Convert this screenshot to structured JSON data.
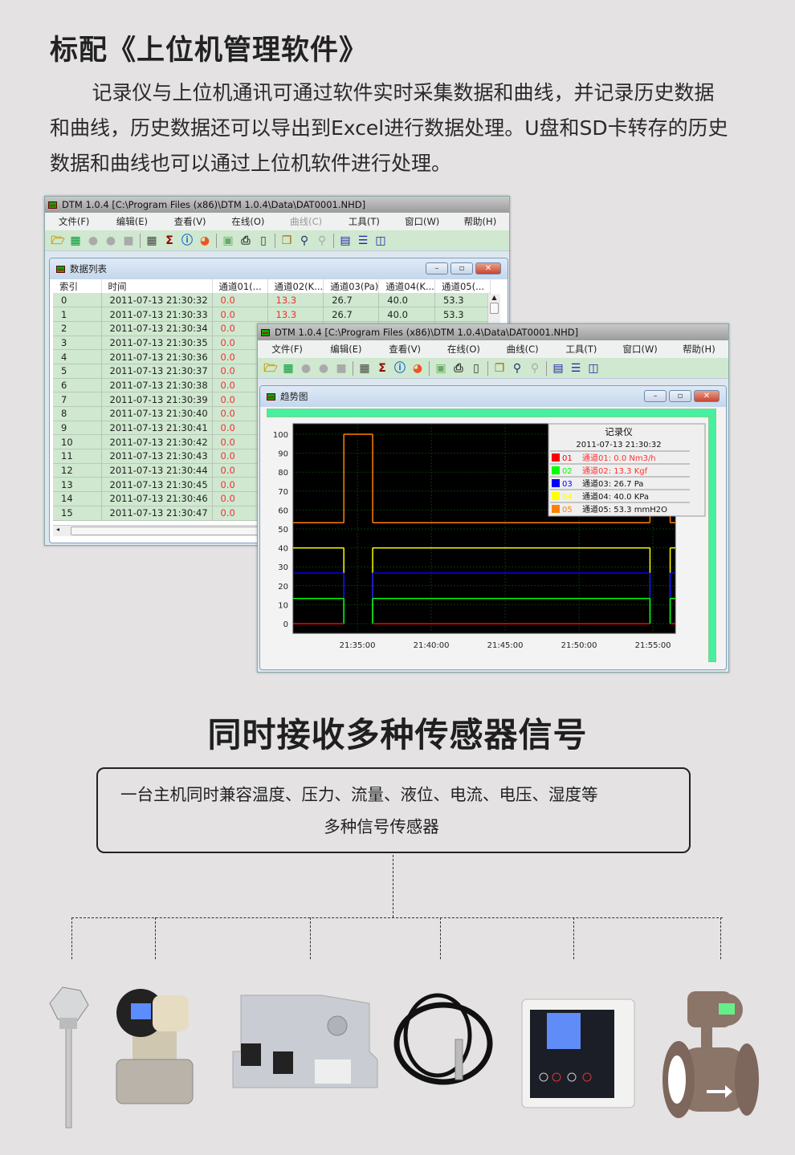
{
  "heading1": "标配《上位机管理软件》",
  "intro": "记录仪与上位机通讯可通过软件实时采集数据和曲线，并记录历史数据和曲线，历史数据还可以导出到Excel进行数据处理。U盘和SD卡转存的历史数据和曲线也可以通过上位机软件进行处理。",
  "app": {
    "title": "DTM 1.0.4 [C:\\Program Files (x86)\\DTM 1.0.4\\Data\\DAT0001.NHD]",
    "menu": [
      "文件(F)",
      "编辑(E)",
      "查看(V)",
      "在线(O)",
      "曲线(C)",
      "工具(T)",
      "窗口(W)",
      "帮助(H)"
    ],
    "toolbar_icons": [
      "open-folder-icon",
      "trend-icon",
      "record-icon",
      "stop-circle-icon",
      "stop-square-icon",
      "grid-icon",
      "sigma-icon",
      "info-icon",
      "pie-icon",
      "export-icon",
      "print-icon",
      "print-preview-icon",
      "copy-icon",
      "zoom-in-icon",
      "zoom-out-icon",
      "cascade-icon",
      "tile-horizontal-icon",
      "tile-vertical-icon"
    ],
    "window_buttons": {
      "minimize": "–",
      "restore": "▫",
      "close": "✕"
    }
  },
  "data_list": {
    "title": "数据列表",
    "columns": [
      "索引",
      "时间",
      "通道01(...",
      "通道02(K...",
      "通道03(Pa)",
      "通道04(K...",
      "通道05(..."
    ],
    "rows": [
      [
        "0",
        "2011-07-13 21:30:32",
        "0.0",
        "13.3",
        "26.7",
        "40.0",
        "53.3"
      ],
      [
        "1",
        "2011-07-13 21:30:33",
        "0.0",
        "13.3",
        "26.7",
        "40.0",
        "53.3"
      ],
      [
        "2",
        "2011-07-13 21:30:34",
        "0.0"
      ],
      [
        "3",
        "2011-07-13 21:30:35",
        "0.0"
      ],
      [
        "4",
        "2011-07-13 21:30:36",
        "0.0"
      ],
      [
        "5",
        "2011-07-13 21:30:37",
        "0.0"
      ],
      [
        "6",
        "2011-07-13 21:30:38",
        "0.0"
      ],
      [
        "7",
        "2011-07-13 21:30:39",
        "0.0"
      ],
      [
        "8",
        "2011-07-13 21:30:40",
        "0.0"
      ],
      [
        "9",
        "2011-07-13 21:30:41",
        "0.0"
      ],
      [
        "10",
        "2011-07-13 21:30:42",
        "0.0"
      ],
      [
        "11",
        "2011-07-13 21:30:43",
        "0.0"
      ],
      [
        "12",
        "2011-07-13 21:30:44",
        "0.0"
      ],
      [
        "13",
        "2011-07-13 21:30:45",
        "0.0"
      ],
      [
        "14",
        "2011-07-13 21:30:46",
        "0.0"
      ],
      [
        "15",
        "2011-07-13 21:30:47",
        "0.0"
      ]
    ]
  },
  "trend": {
    "title": "趋势图"
  },
  "chart_data": {
    "type": "line",
    "step": true,
    "xlim": [
      "21:30:39",
      "21:56:31"
    ],
    "ylim": [
      0,
      100
    ],
    "yticks": [
      0,
      10,
      20,
      30,
      40,
      50,
      60,
      70,
      80,
      90,
      100
    ],
    "xticks": [
      "21:35:00",
      "21:40:00",
      "21:45:00",
      "21:50:00",
      "21:55:00"
    ],
    "grid": true,
    "background": "#000000",
    "series": [
      {
        "code": "05",
        "name": "通道05: 53.3 mmH2O",
        "color": "#ff8000",
        "points": [
          [
            "21:30:39",
            53.3
          ],
          [
            "21:34:05",
            100
          ],
          [
            "21:36:02",
            53.3
          ],
          [
            "21:54:48",
            100
          ],
          [
            "21:56:10",
            53.3
          ]
        ]
      },
      {
        "code": "04",
        "name": "通道04: 40.0 KPa",
        "color": "#ffff00",
        "points": [
          [
            "21:30:39",
            40
          ],
          [
            "21:34:05",
            null
          ],
          [
            "21:36:02",
            40
          ],
          [
            "21:54:48",
            null
          ],
          [
            "21:56:10",
            40
          ]
        ]
      },
      {
        "code": "03",
        "name": "通道03: 26.7 Pa",
        "color": "#0000ff",
        "points": [
          [
            "21:30:39",
            26.7
          ],
          [
            "21:34:05",
            null
          ],
          [
            "21:36:02",
            26.7
          ],
          [
            "21:54:48",
            null
          ],
          [
            "21:56:10",
            26.7
          ]
        ]
      },
      {
        "code": "02",
        "name": "通道02: 13.3 Kgf",
        "color": "#00ff00",
        "points": [
          [
            "21:30:39",
            13.3
          ],
          [
            "21:34:05",
            null
          ],
          [
            "21:36:02",
            13.3
          ],
          [
            "21:54:48",
            null
          ],
          [
            "21:56:10",
            13.3
          ]
        ]
      },
      {
        "code": "01",
        "name": "通道01: 0.0 Nm3/h",
        "color": "#ff0000",
        "points": [
          [
            "21:30:39",
            0
          ],
          [
            "21:34:05",
            null
          ],
          [
            "21:36:02",
            0
          ],
          [
            "21:54:48",
            null
          ],
          [
            "21:56:10",
            0
          ]
        ]
      }
    ],
    "legend": {
      "title": "记录仪",
      "time": "2011-07-13 21:30:32",
      "placement": "top-right",
      "alarm_color": "#ff3030",
      "alarm_codes": [
        "01",
        "02"
      ]
    }
  },
  "heading2": "同时接收多种传感器信号",
  "sensor_box": {
    "line1": "一台主机同时兼容温度、压力、流量、液位、电流、电压、湿度等",
    "line2": "多种信号传感器"
  },
  "sensors": [
    "temperature-sensor",
    "pressure-transmitter",
    "current-transducer",
    "level-sensor",
    "humidity-transmitter",
    "electromagnetic-flowmeter"
  ]
}
